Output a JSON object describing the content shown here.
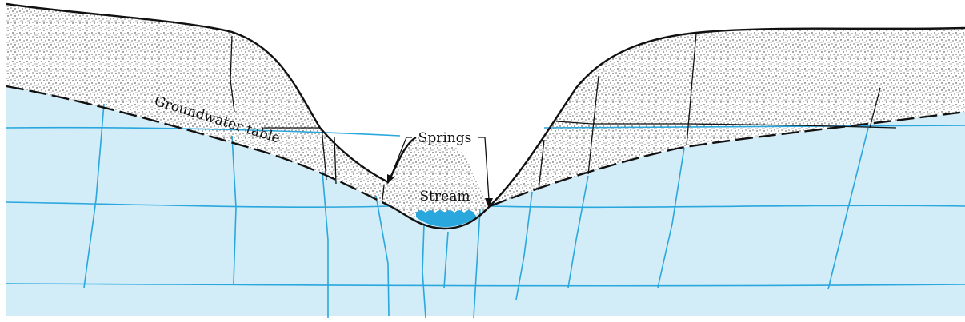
{
  "labels": {
    "groundwater_table": "Groundwater table",
    "springs": "Springs",
    "stream": "Stream"
  }
}
